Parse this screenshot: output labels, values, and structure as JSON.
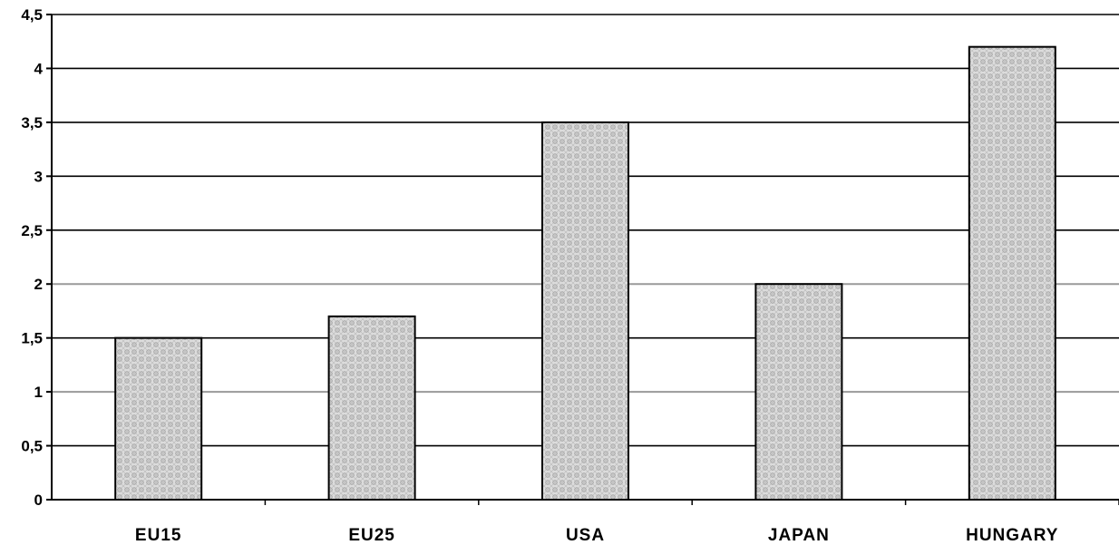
{
  "chart_data": {
    "type": "bar",
    "title": "",
    "xlabel": "",
    "ylabel": "",
    "categories": [
      "EU15",
      "EU25",
      "USA",
      "JAPAN",
      "HUNGARY"
    ],
    "values": [
      1.5,
      1.7,
      3.5,
      2.0,
      4.2
    ],
    "ylim": [
      0,
      4.5
    ],
    "y_ticks": [
      0,
      0.5,
      1,
      1.5,
      2,
      2.5,
      3,
      3.5,
      4,
      4.5
    ],
    "y_tick_labels": [
      "0",
      "0,5",
      "1",
      "1,5",
      "2",
      "2,5",
      "3",
      "3,5",
      "4",
      "4,5"
    ],
    "grid": true,
    "legend": "none",
    "colors": {
      "bar_fill": "#dcdcdc",
      "bar_pattern": "#9a9a9a",
      "bar_outline": "#000000",
      "grid": "#000000",
      "grid_light": "#9a9a9a",
      "axis": "#000000"
    }
  }
}
